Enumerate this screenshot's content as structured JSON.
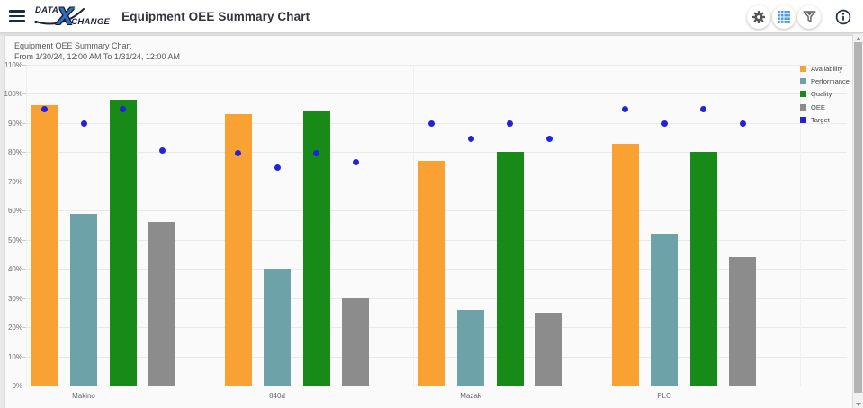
{
  "header": {
    "logo_data": "DATA",
    "logo_x": "X",
    "logo_change": "CHANGE",
    "title": "Equipment OEE Summary Chart",
    "actions": [
      {
        "name": "settings",
        "icon": "gear-icon"
      },
      {
        "name": "grid-view",
        "icon": "grid-icon"
      },
      {
        "name": "filter",
        "icon": "filter-icon"
      },
      {
        "name": "info",
        "icon": "info-icon"
      }
    ]
  },
  "chart": {
    "title": "Equipment OEE Summary Chart",
    "subtitle": "From 1/30/24, 12:00 AM To 1/31/24, 12:00 AM"
  },
  "chart_data": {
    "type": "bar",
    "title": "Equipment OEE Summary Chart",
    "subtitle": "From 1/30/24, 12:00 AM To 1/31/24, 12:00 AM",
    "categories": [
      "Makino",
      "840d",
      "Mazak",
      "PLC"
    ],
    "series": [
      {
        "name": "Availability",
        "type": "bar",
        "color": "#F9A233",
        "values": [
          96,
          93,
          77,
          83
        ]
      },
      {
        "name": "Performance",
        "type": "bar",
        "color": "#6CA2A8",
        "values": [
          59,
          40,
          26,
          52
        ]
      },
      {
        "name": "Quality",
        "type": "bar",
        "color": "#188A18",
        "values": [
          98,
          94,
          80,
          80
        ]
      },
      {
        "name": "OEE",
        "type": "bar",
        "color": "#8C8C8C",
        "values": [
          56,
          30,
          25,
          44
        ]
      },
      {
        "name": "Target",
        "type": "point",
        "color": "#2222DD",
        "values_by_category": [
          [
            95,
            90,
            95,
            81
          ],
          [
            80,
            75,
            80,
            77
          ],
          [
            90,
            85,
            90,
            85
          ],
          [
            95,
            90,
            95,
            90
          ]
        ]
      }
    ],
    "y_axis": {
      "min": 0,
      "max": 110,
      "step": 10,
      "unit": "%"
    },
    "grid": true,
    "legend_position": "top-right",
    "legend_entries": [
      "Availability",
      "Performance",
      "Quality",
      "OEE",
      "Target"
    ]
  },
  "colors": {
    "availability": "#F9A233",
    "performance": "#6CA2A8",
    "quality": "#188A18",
    "oee": "#8C8C8C",
    "target": "#2222DD",
    "grid_icon_blue": "#4F9BE7"
  }
}
